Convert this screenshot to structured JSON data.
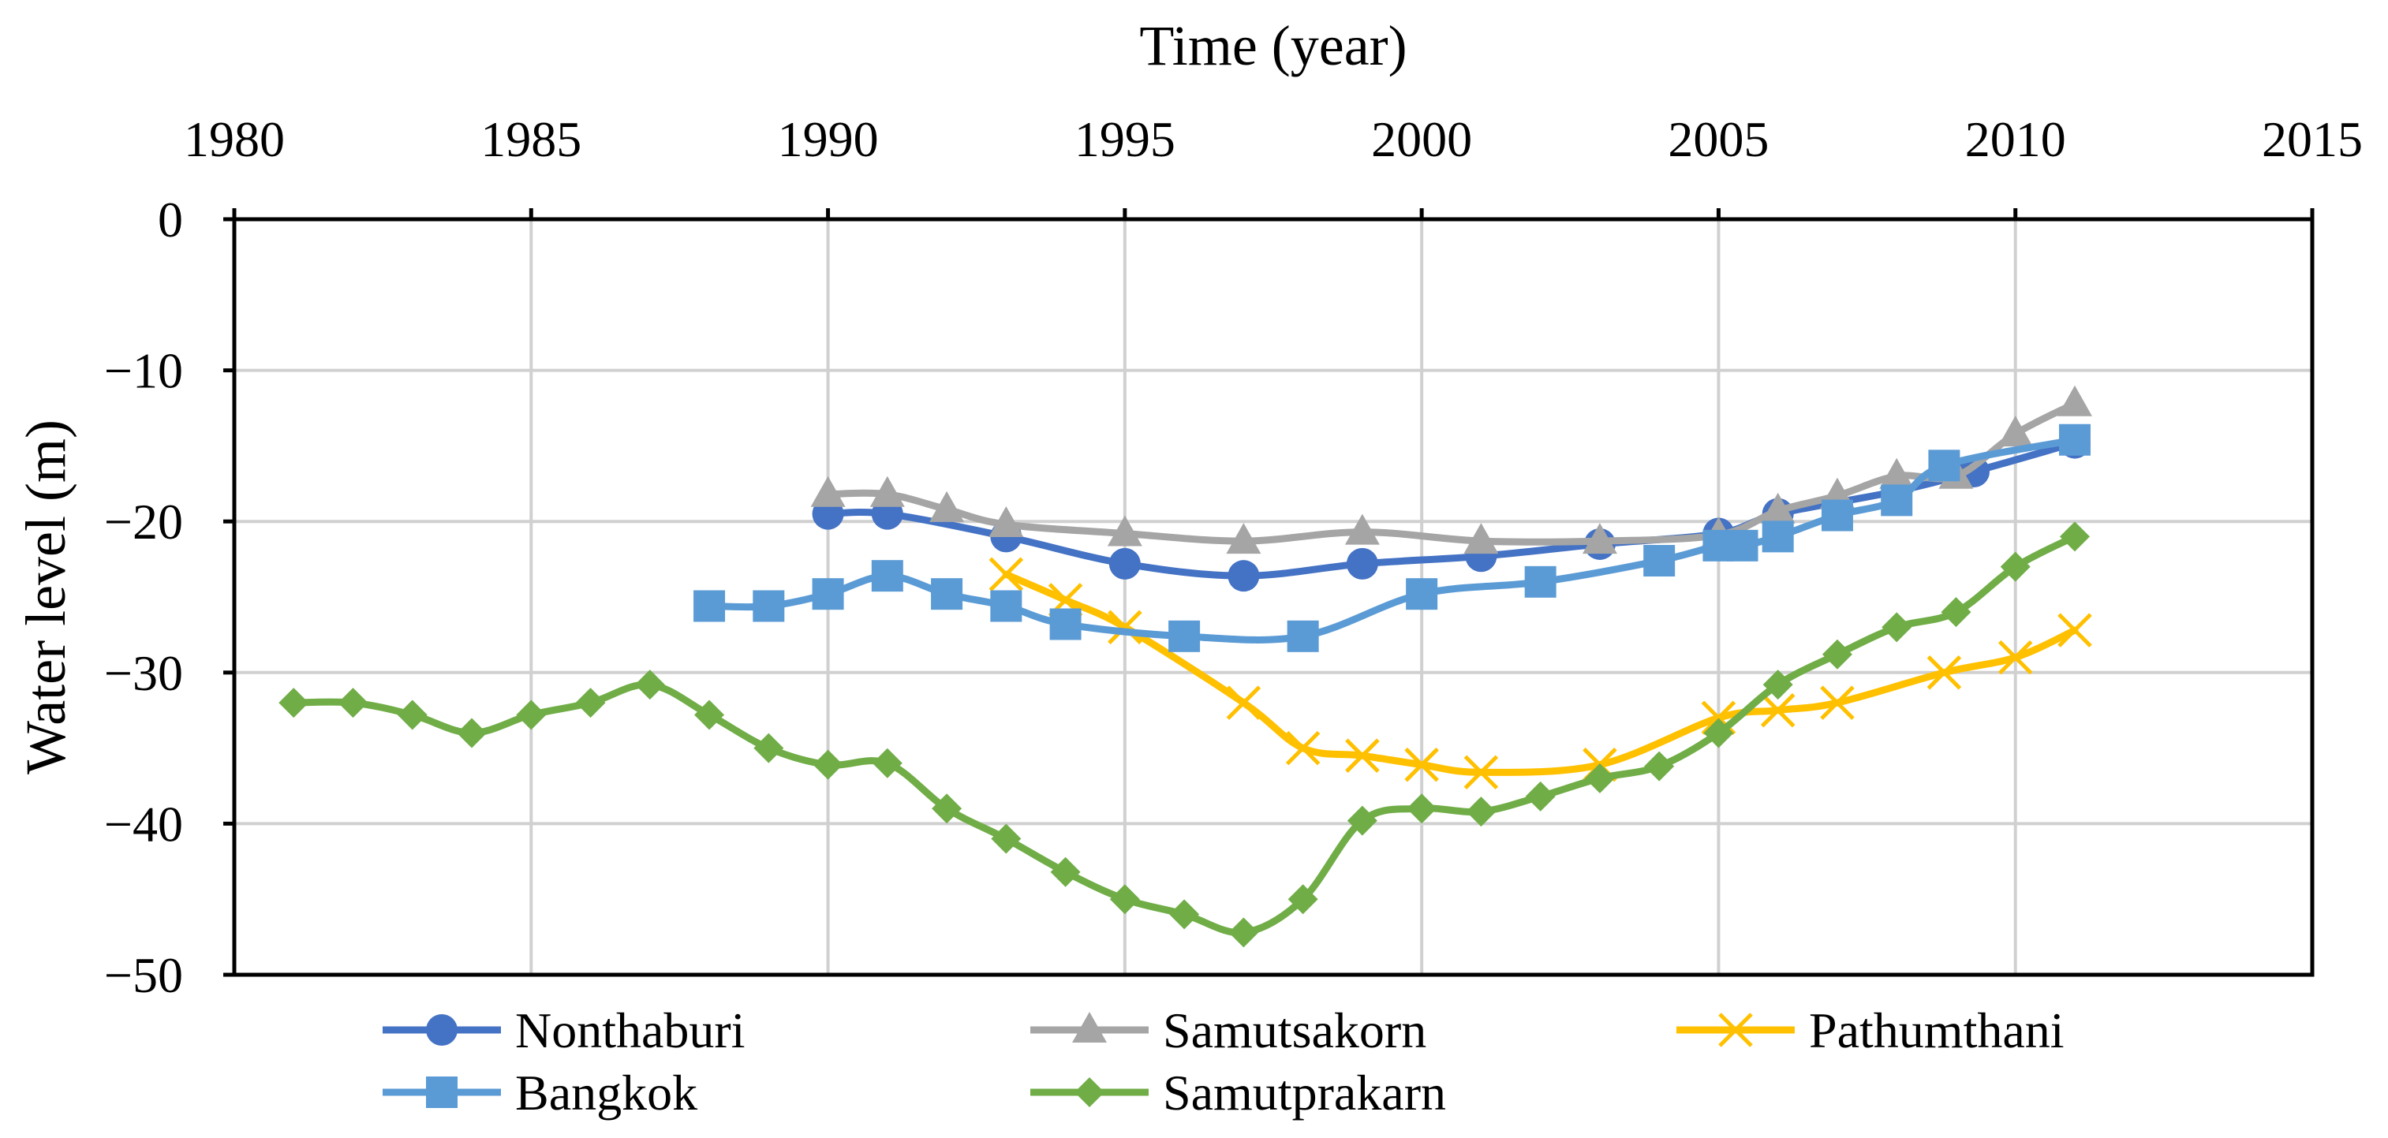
{
  "chart_data": {
    "type": "line",
    "title": "",
    "xlabel": "Time (year)",
    "ylabel": "Water level (m)",
    "xlim": [
      1980,
      2015
    ],
    "ylim": [
      -50,
      0
    ],
    "x_ticks": [
      1980,
      1985,
      1990,
      1995,
      2000,
      2005,
      2010,
      2015
    ],
    "x_tick_labels": [
      "1980",
      "1985",
      "1990",
      "1995",
      "2000",
      "2005",
      "2010",
      "2015"
    ],
    "y_ticks": [
      0,
      -10,
      -20,
      -30,
      -40,
      -50
    ],
    "y_tick_labels": [
      "0",
      "−10",
      "−20",
      "−30",
      "−40",
      "−50"
    ],
    "x_axis_position": "top",
    "grid": true,
    "legend_position": "bottom",
    "series": [
      {
        "name": "Nonthaburi",
        "color": "#4472C4",
        "marker": "circle",
        "points": [
          [
            1990,
            -19.5
          ],
          [
            1991,
            -19.5
          ],
          [
            1993,
            -21
          ],
          [
            1995,
            -22.8
          ],
          [
            1997,
            -23.6
          ],
          [
            1999,
            -22.8
          ],
          [
            2001,
            -22.3
          ],
          [
            2003,
            -21.5
          ],
          [
            2005,
            -20.8
          ],
          [
            2006,
            -19.5
          ],
          [
            2008,
            -18
          ],
          [
            2009.3,
            -16.7
          ],
          [
            2011,
            -14.8
          ]
        ]
      },
      {
        "name": "Samutsakorn",
        "color": "#A5A5A5",
        "marker": "triangle",
        "points": [
          [
            1990,
            -18.2
          ],
          [
            1991,
            -18.2
          ],
          [
            1992,
            -19.2
          ],
          [
            1993,
            -20.2
          ],
          [
            1995,
            -20.8
          ],
          [
            1997,
            -21.3
          ],
          [
            1999,
            -20.7
          ],
          [
            2001,
            -21.3
          ],
          [
            2003,
            -21.3
          ],
          [
            2005,
            -20.9
          ],
          [
            2006,
            -19.3
          ],
          [
            2007,
            -18.3
          ],
          [
            2008,
            -17
          ],
          [
            2009,
            -17
          ],
          [
            2010,
            -14.2
          ],
          [
            2011,
            -12.2
          ]
        ]
      },
      {
        "name": "Pathumthani",
        "color": "#FFC000",
        "marker": "x",
        "points": [
          [
            1993,
            -23.5
          ],
          [
            1994,
            -25.2
          ],
          [
            1995,
            -27
          ],
          [
            1997,
            -32
          ],
          [
            1998,
            -35
          ],
          [
            1999,
            -35.5
          ],
          [
            2000,
            -36.1
          ],
          [
            2001,
            -36.6
          ],
          [
            2003,
            -36.1
          ],
          [
            2005,
            -33
          ],
          [
            2006,
            -32.5
          ],
          [
            2007,
            -32
          ],
          [
            2008.8,
            -30
          ],
          [
            2010,
            -29
          ],
          [
            2011,
            -27.2
          ]
        ]
      },
      {
        "name": "Bangkok",
        "color": "#5B9BD5",
        "marker": "square",
        "points": [
          [
            1988,
            -25.6
          ],
          [
            1989,
            -25.6
          ],
          [
            1990,
            -24.8
          ],
          [
            1991,
            -23.6
          ],
          [
            1992,
            -24.8
          ],
          [
            1993,
            -25.6
          ],
          [
            1994,
            -26.8
          ],
          [
            1996,
            -27.6
          ],
          [
            1998,
            -27.6
          ],
          [
            2000,
            -24.8
          ],
          [
            2002,
            -24
          ],
          [
            2004,
            -22.6
          ],
          [
            2005,
            -21.6
          ],
          [
            2005.4,
            -21.6
          ],
          [
            2006,
            -21
          ],
          [
            2007,
            -19.6
          ],
          [
            2008,
            -18.6
          ],
          [
            2008.8,
            -16.3
          ],
          [
            2011,
            -14.6
          ]
        ]
      },
      {
        "name": "Samutprakarn",
        "color": "#70AD47",
        "marker": "diamond",
        "points": [
          [
            1981,
            -32
          ],
          [
            1982,
            -32
          ],
          [
            1983,
            -32.8
          ],
          [
            1984,
            -34
          ],
          [
            1985,
            -32.8
          ],
          [
            1986,
            -32
          ],
          [
            1987,
            -30.8
          ],
          [
            1988,
            -32.8
          ],
          [
            1989,
            -35
          ],
          [
            1990,
            -36.1
          ],
          [
            1991,
            -36
          ],
          [
            1992,
            -39
          ],
          [
            1993,
            -41
          ],
          [
            1994,
            -43.2
          ],
          [
            1995,
            -45
          ],
          [
            1996,
            -46
          ],
          [
            1997,
            -47.2
          ],
          [
            1998,
            -45
          ],
          [
            1999,
            -39.8
          ],
          [
            2000,
            -39
          ],
          [
            2001,
            -39.2
          ],
          [
            2002,
            -38.2
          ],
          [
            2003,
            -37
          ],
          [
            2004,
            -36.2
          ],
          [
            2005,
            -34
          ],
          [
            2006,
            -30.8
          ],
          [
            2007,
            -28.8
          ],
          [
            2008,
            -27
          ],
          [
            2009,
            -26
          ],
          [
            2010,
            -23
          ],
          [
            2011,
            -21
          ]
        ]
      }
    ]
  }
}
